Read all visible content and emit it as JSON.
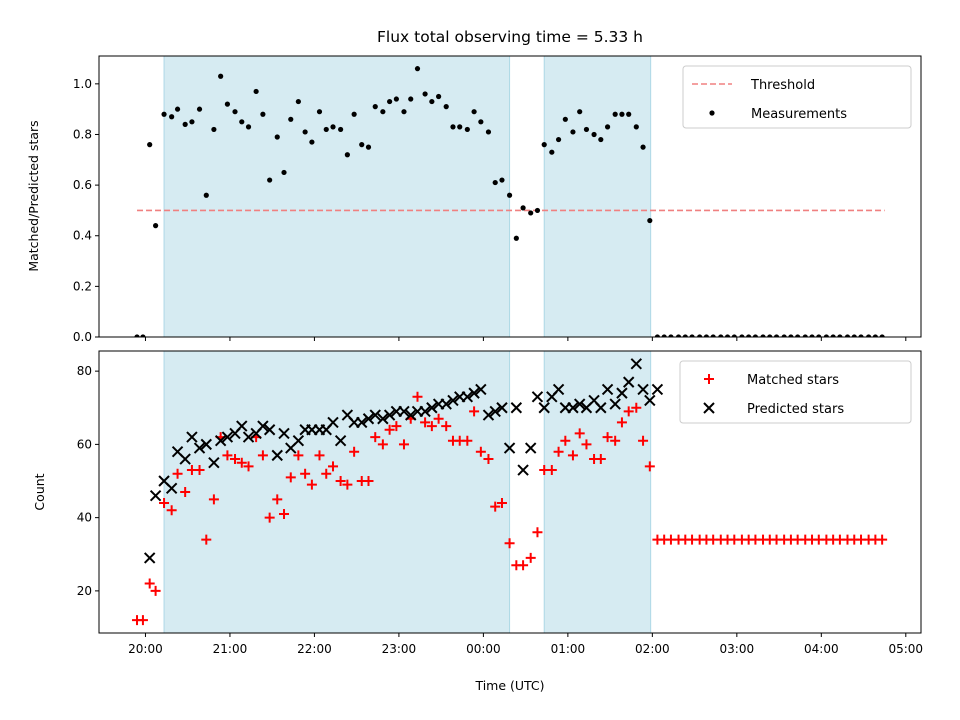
{
  "chart_data": {
    "title": "Flux total observing time = 5.33 h",
    "x_axis": {
      "label": "Time (UTC)",
      "unit": "hours since 20:00 UTC",
      "range": [
        -0.55,
        9.18
      ],
      "ticks": [
        0,
        1,
        2,
        3,
        4,
        5,
        6,
        7,
        8,
        9
      ],
      "tick_labels": [
        "20:00",
        "21:00",
        "22:00",
        "23:00",
        "00:00",
        "01:00",
        "02:00",
        "03:00",
        "04:00",
        "05:00"
      ]
    },
    "shaded_intervals": [
      [
        0.22,
        4.31
      ],
      [
        4.72,
        5.98
      ]
    ],
    "panels": [
      {
        "type": "scatter",
        "ylabel": "Matched/Predicted stars",
        "ylim": [
          0,
          1.11
        ],
        "yticks": [
          0.0,
          0.2,
          0.4,
          0.6,
          0.8,
          1.0
        ],
        "ytick_labels": [
          "0.0",
          "0.2",
          "0.4",
          "0.6",
          "0.8",
          "1.0"
        ],
        "legend": {
          "placement": "upper-right",
          "entries": [
            "Threshold",
            "Measurements"
          ]
        },
        "threshold": {
          "name": "Threshold",
          "value": 0.5,
          "x_range": [
            -0.1,
            8.75
          ],
          "color": "#f08080"
        },
        "series": [
          {
            "name": "Measurements",
            "color": "#000000",
            "x": [
              -0.1,
              -0.03,
              0.05,
              0.12,
              0.22,
              0.31,
              0.38,
              0.47,
              0.55,
              0.64,
              0.72,
              0.81,
              0.89,
              0.97,
              1.06,
              1.14,
              1.22,
              1.31,
              1.39,
              1.47,
              1.56,
              1.64,
              1.72,
              1.81,
              1.89,
              1.97,
              2.06,
              2.14,
              2.22,
              2.31,
              2.39,
              2.47,
              2.56,
              2.64,
              2.72,
              2.81,
              2.89,
              2.97,
              3.06,
              3.14,
              3.22,
              3.31,
              3.39,
              3.47,
              3.56,
              3.64,
              3.72,
              3.81,
              3.89,
              3.97,
              4.06,
              4.14,
              4.22,
              4.31,
              4.39,
              4.47,
              4.56,
              4.64,
              4.72,
              4.81,
              4.89,
              4.97,
              5.06,
              5.14,
              5.22,
              5.31,
              5.39,
              5.47,
              5.56,
              5.64,
              5.72,
              5.81,
              5.89,
              5.97,
              6.06,
              6.14,
              6.22,
              6.31,
              6.39,
              6.47,
              6.56,
              6.64,
              6.72,
              6.81,
              6.89,
              6.97,
              7.06,
              7.14,
              7.22,
              7.31,
              7.39,
              7.47,
              7.56,
              7.64,
              7.72,
              7.81,
              7.89,
              7.97,
              8.06,
              8.14,
              8.22,
              8.31,
              8.39,
              8.47,
              8.56,
              8.64,
              8.72
            ],
            "y": [
              0.0,
              0.0,
              0.76,
              0.44,
              0.88,
              0.87,
              0.9,
              0.84,
              0.85,
              0.9,
              0.56,
              0.82,
              1.03,
              0.92,
              0.89,
              0.85,
              0.83,
              0.97,
              0.88,
              0.62,
              0.79,
              0.65,
              0.86,
              0.93,
              0.81,
              0.77,
              0.89,
              0.82,
              0.83,
              0.82,
              0.72,
              0.88,
              0.76,
              0.75,
              0.91,
              0.89,
              0.93,
              0.94,
              0.89,
              0.94,
              1.06,
              0.96,
              0.93,
              0.95,
              0.91,
              0.83,
              0.83,
              0.82,
              0.89,
              0.85,
              0.81,
              0.61,
              0.62,
              0.56,
              0.39,
              0.51,
              0.49,
              0.5,
              0.76,
              0.73,
              0.78,
              0.86,
              0.81,
              0.89,
              0.82,
              0.8,
              0.78,
              0.83,
              0.88,
              0.88,
              0.88,
              0.83,
              0.75,
              0.46,
              0.0,
              0.0,
              0.0,
              0.0,
              0.0,
              0.0,
              0.0,
              0.0,
              0.0,
              0.0,
              0.0,
              0.0,
              0.0,
              0.0,
              0.0,
              0.0,
              0.0,
              0.0,
              0.0,
              0.0,
              0.0,
              0.0,
              0.0,
              0.0,
              0.0,
              0.0,
              0.0,
              0.0,
              0.0,
              0.0,
              0.0,
              0.0,
              0.0
            ]
          }
        ]
      },
      {
        "type": "scatter",
        "ylabel": "Count",
        "ylim": [
          8.5,
          85.5
        ],
        "yticks": [
          20,
          40,
          60,
          80
        ],
        "ytick_labels": [
          "20",
          "40",
          "60",
          "80"
        ],
        "legend": {
          "placement": "upper-right",
          "entries": [
            "Matched stars",
            "Predicted stars"
          ]
        },
        "series": [
          {
            "name": "Matched stars",
            "marker": "plus",
            "color": "#ff0000",
            "x": [
              -0.1,
              -0.03,
              0.05,
              0.12,
              0.22,
              0.31,
              0.38,
              0.47,
              0.55,
              0.64,
              0.72,
              0.81,
              0.89,
              0.97,
              1.06,
              1.14,
              1.22,
              1.31,
              1.39,
              1.47,
              1.56,
              1.64,
              1.72,
              1.81,
              1.89,
              1.97,
              2.06,
              2.14,
              2.22,
              2.31,
              2.39,
              2.47,
              2.56,
              2.64,
              2.72,
              2.81,
              2.89,
              2.97,
              3.06,
              3.14,
              3.22,
              3.31,
              3.39,
              3.47,
              3.56,
              3.64,
              3.72,
              3.81,
              3.89,
              3.97,
              4.06,
              4.14,
              4.22,
              4.31,
              4.39,
              4.47,
              4.56,
              4.64,
              4.72,
              4.81,
              4.89,
              4.97,
              5.06,
              5.14,
              5.22,
              5.31,
              5.39,
              5.47,
              5.56,
              5.64,
              5.72,
              5.81,
              5.89,
              5.97,
              6.06,
              6.14,
              6.22,
              6.31,
              6.39,
              6.47,
              6.56,
              6.64,
              6.72,
              6.81,
              6.89,
              6.97,
              7.06,
              7.14,
              7.22,
              7.31,
              7.39,
              7.47,
              7.56,
              7.64,
              7.72,
              7.81,
              7.89,
              7.97,
              8.06,
              8.14,
              8.22,
              8.31,
              8.39,
              8.47,
              8.56,
              8.64,
              8.72
            ],
            "y": [
              12,
              12,
              22,
              20,
              44,
              42,
              52,
              47,
              53,
              53,
              34,
              45,
              62,
              57,
              56,
              55,
              54,
              62,
              57,
              40,
              45,
              41,
              51,
              57,
              52,
              49,
              57,
              52,
              54,
              50,
              49,
              58,
              50,
              50,
              62,
              60,
              64,
              65,
              60,
              67,
              73,
              66,
              65,
              67,
              65,
              61,
              61,
              61,
              69,
              58,
              56,
              43,
              44,
              33,
              27,
              27,
              29,
              36,
              53,
              53,
              58,
              61,
              57,
              63,
              60,
              56,
              56,
              62,
              61,
              66,
              69,
              70,
              61,
              54,
              34,
              34,
              34,
              34,
              34,
              34,
              34,
              34,
              34,
              34,
              34,
              34,
              34,
              34,
              34,
              34,
              34,
              34,
              34,
              34,
              34,
              34,
              34,
              34,
              34,
              34,
              34,
              34,
              34,
              34,
              34,
              34,
              34
            ]
          },
          {
            "name": "Predicted stars",
            "marker": "x",
            "color": "#000000",
            "x": [
              0.05,
              0.12,
              0.22,
              0.31,
              0.38,
              0.47,
              0.55,
              0.64,
              0.72,
              0.81,
              0.89,
              0.97,
              1.06,
              1.14,
              1.22,
              1.31,
              1.39,
              1.47,
              1.56,
              1.64,
              1.72,
              1.81,
              1.89,
              1.97,
              2.06,
              2.14,
              2.22,
              2.31,
              2.39,
              2.47,
              2.56,
              2.64,
              2.72,
              2.81,
              2.89,
              2.97,
              3.06,
              3.14,
              3.22,
              3.31,
              3.39,
              3.47,
              3.56,
              3.64,
              3.72,
              3.81,
              3.89,
              3.97,
              4.06,
              4.14,
              4.22,
              4.31,
              4.39,
              4.47,
              4.56,
              4.64,
              4.72,
              4.81,
              4.89,
              4.97,
              5.06,
              5.14,
              5.22,
              5.31,
              5.39,
              5.47,
              5.56,
              5.64,
              5.72,
              5.81,
              5.89,
              5.97,
              6.06
            ],
            "y": [
              29,
              46,
              50,
              48,
              58,
              56,
              62,
              59,
              60,
              55,
              61,
              62,
              63,
              65,
              62,
              63,
              65,
              64,
              57,
              63,
              59,
              61,
              64,
              64,
              64,
              64,
              66,
              61,
              68,
              66,
              66,
              67,
              68,
              67,
              68,
              69,
              69,
              68,
              69,
              69,
              70,
              71,
              71,
              72,
              73,
              73,
              74,
              75,
              68,
              69,
              70,
              59,
              70,
              53,
              59,
              73,
              70,
              73,
              75,
              70,
              70,
              71,
              70,
              72,
              70,
              75,
              71,
              74,
              77,
              82,
              75,
              72,
              75
            ]
          }
        ]
      }
    ]
  }
}
